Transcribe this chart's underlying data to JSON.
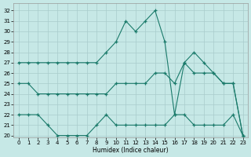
{
  "xlabel": "Humidex (Indice chaleur)",
  "bg_color": "#c6e8e6",
  "line_color": "#1a7a6a",
  "grid_color": "#a8cccc",
  "xlim": [
    -0.5,
    23.5
  ],
  "ylim": [
    19.8,
    32.7
  ],
  "yticks": [
    20,
    21,
    22,
    23,
    24,
    25,
    26,
    27,
    28,
    29,
    30,
    31,
    32
  ],
  "xticks": [
    0,
    1,
    2,
    3,
    4,
    5,
    6,
    7,
    8,
    9,
    10,
    11,
    12,
    13,
    14,
    15,
    16,
    17,
    18,
    19,
    20,
    21,
    22,
    23
  ],
  "line1_x": [
    0,
    1,
    2,
    3,
    4,
    5,
    6,
    7,
    8,
    9,
    10,
    11,
    12,
    13,
    14,
    15,
    16,
    17,
    18,
    19,
    20,
    21,
    22,
    23
  ],
  "line1_y": [
    27,
    27,
    27,
    27,
    27,
    27,
    27,
    27,
    27,
    28,
    29,
    31,
    30,
    31,
    32,
    29,
    22,
    27,
    28,
    27,
    26,
    25,
    25,
    20
  ],
  "line2_x": [
    0,
    1,
    2,
    3,
    4,
    5,
    6,
    7,
    8,
    9,
    10,
    11,
    12,
    13,
    14,
    15,
    16,
    17,
    18,
    19,
    20,
    21,
    22,
    23
  ],
  "line2_y": [
    25,
    25,
    24,
    24,
    24,
    24,
    24,
    24,
    24,
    24,
    25,
    25,
    25,
    25,
    26,
    26,
    25,
    27,
    26,
    26,
    26,
    25,
    25,
    20
  ],
  "line3_x": [
    0,
    1,
    2,
    3,
    4,
    5,
    6,
    7,
    8,
    9,
    10,
    11,
    12,
    13,
    14,
    15,
    16,
    17,
    18,
    19,
    20,
    21,
    22,
    23
  ],
  "line3_y": [
    22,
    22,
    22,
    21,
    20,
    20,
    20,
    20,
    21,
    22,
    21,
    21,
    21,
    21,
    21,
    21,
    22,
    22,
    21,
    21,
    21,
    21,
    22,
    20
  ]
}
